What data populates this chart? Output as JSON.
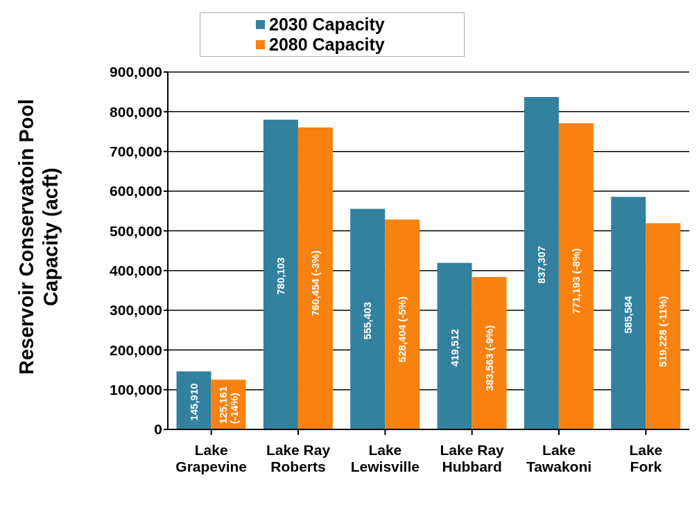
{
  "chart_data": {
    "type": "bar",
    "ylabel": "Reservoir Conservatoin Pool Capacity (acft)",
    "categories": [
      "Lake Grapevine",
      "Lake Ray Roberts",
      "Lake Lewisville",
      "Lake Ray Hubbard",
      "Lake Tawakoni",
      "Lake Fork"
    ],
    "series": [
      {
        "name": "2030 Capacity",
        "color": "#31819f",
        "values": [
          145910,
          780103,
          555403,
          419512,
          837307,
          585584
        ],
        "value_labels": [
          "145,910",
          "780,103",
          "555,403",
          "419,512",
          "837,307",
          "585,584"
        ]
      },
      {
        "name": "2080 Capacity",
        "color": "#f98110",
        "values": [
          125161,
          760454,
          528404,
          383563,
          771193,
          519228
        ],
        "value_labels": [
          "125,161 (-14%)",
          "760,454 (-3%)",
          "528,404 (-5%)",
          "383,563 (-9%)",
          "771,193 (-8%)",
          "519,228 (-11%)"
        ]
      }
    ],
    "ylim": [
      0,
      900000
    ],
    "yticks": [
      0,
      {
        "value": 100000,
        "label": "100,000"
      },
      {
        "value": 200000,
        "label": "200,000"
      },
      {
        "value": 300000,
        "label": "300,000"
      },
      {
        "value": 400000,
        "label": "400,000"
      },
      {
        "value": 500000,
        "label": "500,000"
      },
      {
        "value": 600000,
        "label": "600,000"
      },
      {
        "value": 700000,
        "label": "700,000"
      },
      {
        "value": 800000,
        "label": "800,000"
      },
      {
        "value": 900000,
        "label": "900,000"
      }
    ],
    "grid": "y",
    "legend": "top"
  }
}
